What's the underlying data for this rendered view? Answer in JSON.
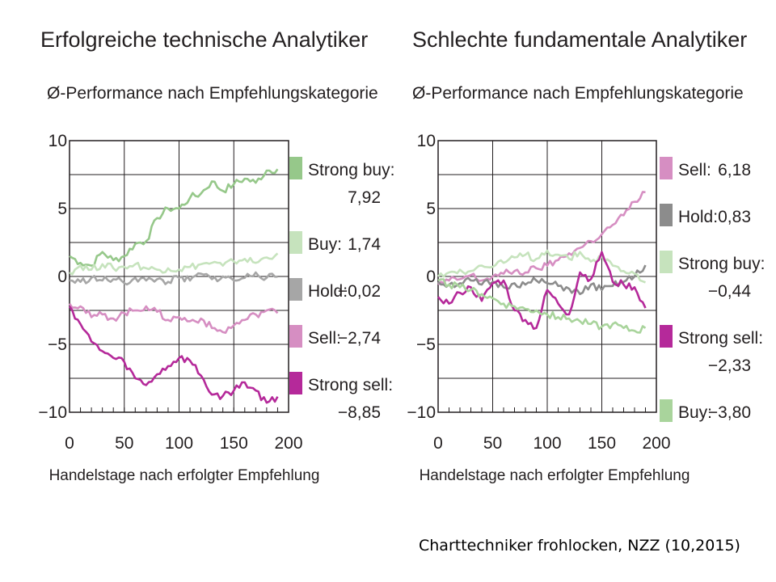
{
  "source": "Charttechniker frohlocken, NZZ (10,2015)",
  "chart_data": [
    {
      "type": "line",
      "title": "Erfolgreiche technische Analytiker",
      "subtitle": "Ø-Performance nach Empfehlungskategorie",
      "xlabel": "Handelstage nach erfolgter Empfehlung",
      "ylabel": "",
      "xlim": [
        0,
        200
      ],
      "ylim": [
        -10,
        10
      ],
      "xticks": [
        "0",
        "50",
        "100",
        "150",
        "200"
      ],
      "yticks": [
        "10",
        "5",
        "0",
        "−5",
        "−10"
      ],
      "grid": true,
      "legend_position": "right",
      "series": [
        {
          "name": "Strong buy:",
          "final_label": "7,92",
          "color": "#96c88a",
          "x": [
            0,
            10,
            20,
            30,
            40,
            50,
            60,
            70,
            80,
            90,
            100,
            110,
            120,
            130,
            140,
            150,
            160,
            170,
            180,
            190
          ],
          "y": [
            1.5,
            1.0,
            0.8,
            1.8,
            1.2,
            1.5,
            2.4,
            2.6,
            4.3,
            5.0,
            5.0,
            5.8,
            6.1,
            7.0,
            6.3,
            6.8,
            7.2,
            6.9,
            7.8,
            7.9
          ]
        },
        {
          "name": "Buy:",
          "final_label": "1,74",
          "color": "#c6e3bd",
          "x": [
            0,
            10,
            20,
            30,
            40,
            50,
            60,
            70,
            80,
            90,
            100,
            110,
            120,
            130,
            140,
            150,
            160,
            170,
            180,
            190
          ],
          "y": [
            0.3,
            0.8,
            0.5,
            0.9,
            0.6,
            0.7,
            0.9,
            0.6,
            0.5,
            0.6,
            0.5,
            0.7,
            0.9,
            1.0,
            0.8,
            1.1,
            1.3,
            1.0,
            1.4,
            1.7
          ]
        },
        {
          "name": "Hold:",
          "final_label": "−0,02",
          "color": "#a6a6a6",
          "x": [
            0,
            10,
            20,
            30,
            40,
            50,
            60,
            70,
            80,
            90,
            100,
            110,
            120,
            130,
            140,
            150,
            160,
            170,
            180,
            190
          ],
          "y": [
            -0.3,
            -0.4,
            -0.1,
            -0.3,
            -0.2,
            -0.5,
            -0.1,
            -0.3,
            -0.2,
            -0.4,
            -0.1,
            -0.3,
            0.2,
            -0.2,
            0.0,
            -0.3,
            -0.1,
            0.3,
            -0.1,
            -0.02
          ]
        },
        {
          "name": "Sell:",
          "final_label": "−2,74",
          "color": "#d68ec2",
          "x": [
            0,
            10,
            20,
            30,
            40,
            50,
            60,
            70,
            80,
            90,
            100,
            110,
            120,
            130,
            140,
            150,
            160,
            170,
            180,
            190
          ],
          "y": [
            -2.0,
            -2.2,
            -3.0,
            -2.8,
            -3.1,
            -2.7,
            -2.5,
            -2.2,
            -2.6,
            -3.2,
            -3.0,
            -3.3,
            -3.1,
            -3.8,
            -4.1,
            -3.6,
            -3.2,
            -2.8,
            -2.5,
            -2.7
          ]
        },
        {
          "name": "Strong sell:",
          "final_label": "−8,85",
          "color": "#b5299a",
          "x": [
            0,
            10,
            20,
            30,
            40,
            50,
            60,
            70,
            80,
            90,
            100,
            110,
            120,
            130,
            140,
            150,
            160,
            170,
            180,
            190
          ],
          "y": [
            -2.2,
            -3.5,
            -4.8,
            -5.5,
            -6.0,
            -6.3,
            -7.5,
            -8.0,
            -7.2,
            -6.6,
            -6.0,
            -6.2,
            -7.3,
            -8.7,
            -8.8,
            -8.4,
            -7.8,
            -8.4,
            -9.3,
            -8.85
          ]
        }
      ]
    },
    {
      "type": "line",
      "title": "Schlechte fundamentale Analytiker",
      "subtitle": "Ø-Performance nach Empfehlungskategorie",
      "xlabel": "Handelstage nach erfolgter Empfehlung",
      "ylabel": "",
      "xlim": [
        0,
        200
      ],
      "ylim": [
        -10,
        10
      ],
      "xticks": [
        "0",
        "50",
        "100",
        "150",
        "200"
      ],
      "yticks": [
        "10",
        "5",
        "0",
        "−5",
        "−10"
      ],
      "grid": true,
      "legend_position": "right",
      "series": [
        {
          "name": "Sell:",
          "final_label": "6,18",
          "color": "#d68ec2",
          "x": [
            0,
            10,
            20,
            30,
            40,
            50,
            60,
            70,
            80,
            90,
            100,
            110,
            120,
            130,
            140,
            150,
            160,
            170,
            180,
            190
          ],
          "y": [
            -0.6,
            -0.3,
            -0.2,
            0.1,
            -0.3,
            0.0,
            0.2,
            0.4,
            0.3,
            0.6,
            0.8,
            1.2,
            1.7,
            2.1,
            2.6,
            3.1,
            3.8,
            4.5,
            5.5,
            6.2
          ]
        },
        {
          "name": "Hold:",
          "final_label": "0,83",
          "color": "#8c8c8c",
          "x": [
            0,
            10,
            20,
            30,
            40,
            50,
            60,
            70,
            80,
            90,
            100,
            110,
            120,
            130,
            140,
            150,
            160,
            170,
            180,
            190
          ],
          "y": [
            -0.4,
            -0.6,
            -0.5,
            -0.3,
            -0.6,
            -0.4,
            -0.8,
            -0.5,
            -0.6,
            -0.3,
            -0.5,
            -0.7,
            -0.9,
            -1.3,
            -0.6,
            -1.0,
            -0.7,
            -0.4,
            0.0,
            0.83
          ]
        },
        {
          "name": "Strong buy:",
          "final_label": "−0,44",
          "color": "#c6e3bd",
          "x": [
            0,
            10,
            20,
            30,
            40,
            50,
            60,
            70,
            80,
            90,
            100,
            110,
            120,
            130,
            140,
            150,
            160,
            170,
            180,
            190
          ],
          "y": [
            0.0,
            0.3,
            0.5,
            0.4,
            0.8,
            0.7,
            1.0,
            1.4,
            1.6,
            1.3,
            1.9,
            1.6,
            1.3,
            1.8,
            1.1,
            1.5,
            0.8,
            0.4,
            0.2,
            -0.44
          ]
        },
        {
          "name": "Strong sell:",
          "final_label": "−2,33",
          "color": "#b5299a",
          "x": [
            0,
            10,
            20,
            30,
            40,
            50,
            60,
            70,
            80,
            90,
            100,
            110,
            120,
            130,
            140,
            150,
            160,
            170,
            180,
            190
          ],
          "y": [
            -1.5,
            -2.0,
            -1.2,
            -0.8,
            -1.8,
            -0.5,
            -0.3,
            -2.5,
            -3.2,
            -3.8,
            -1.0,
            -2.0,
            -2.8,
            0.3,
            -0.2,
            1.8,
            -0.4,
            -0.6,
            -0.8,
            -2.33
          ]
        },
        {
          "name": "Buy:",
          "final_label": "−3,80",
          "color": "#a9d49c",
          "x": [
            0,
            10,
            20,
            30,
            40,
            50,
            60,
            70,
            80,
            90,
            100,
            110,
            120,
            130,
            140,
            150,
            160,
            170,
            180,
            190
          ],
          "y": [
            -0.3,
            -0.6,
            -0.8,
            -1.0,
            -1.3,
            -1.6,
            -2.0,
            -2.2,
            -2.4,
            -2.5,
            -2.8,
            -3.0,
            -3.1,
            -3.3,
            -3.5,
            -3.7,
            -3.5,
            -3.8,
            -4.0,
            -3.8
          ]
        }
      ]
    }
  ]
}
